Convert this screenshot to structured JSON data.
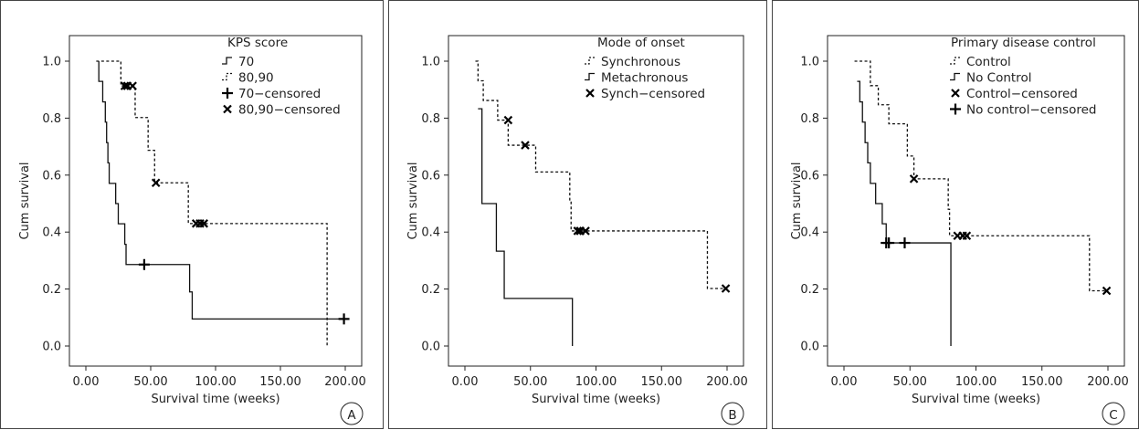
{
  "chart_data": [
    {
      "type": "line",
      "panel_letter": "A",
      "xlabel": "Survival time (weeks)",
      "ylabel": "Cum survival",
      "xlim": [
        0,
        200
      ],
      "ylim": [
        0,
        1
      ],
      "xticks": [
        "0.00",
        "50.00",
        "100.00",
        "150.00",
        "200.00"
      ],
      "yticks": [
        "0.0",
        "0.2",
        "0.4",
        "0.6",
        "0.8",
        "1.0"
      ],
      "legend_title": "KPS score",
      "legend": [
        {
          "label": "70",
          "marker": "step-solid"
        },
        {
          "label": "80,90",
          "marker": "step-dotted"
        },
        {
          "label": "70−censored",
          "marker": "plus"
        },
        {
          "label": "80,90−censored",
          "marker": "cross"
        }
      ],
      "series": [
        {
          "name": "70",
          "style": "solid",
          "steps": [
            [
              10,
              1.0
            ],
            [
              10,
              0.929
            ],
            [
              13,
              0.857
            ],
            [
              15,
              0.786
            ],
            [
              16,
              0.714
            ],
            [
              17,
              0.643
            ],
            [
              18,
              0.571
            ],
            [
              23,
              0.5
            ],
            [
              25,
              0.429
            ],
            [
              30,
              0.357
            ],
            [
              31,
              0.286
            ],
            [
              80,
              0.19
            ],
            [
              82,
              0.095
            ],
            [
              200,
              0.095
            ]
          ],
          "end_drop": null,
          "censored_marker": "plus",
          "censored": [
            [
              45,
              0.286
            ],
            [
              199,
              0.095
            ]
          ]
        },
        {
          "name": "80,90",
          "style": "dotted",
          "steps": [
            [
              8,
              1.0
            ],
            [
              27,
              0.913
            ],
            [
              38,
              0.802
            ],
            [
              48,
              0.687
            ],
            [
              53,
              0.573
            ],
            [
              79,
              0.43
            ],
            [
              186,
              0.43
            ]
          ],
          "end_drop": 0.0,
          "censored_marker": "cross",
          "censored": [
            [
              30,
              0.913
            ],
            [
              32,
              0.913
            ],
            [
              36,
              0.913
            ],
            [
              54,
              0.573
            ],
            [
              85,
              0.43
            ],
            [
              88,
              0.43
            ],
            [
              91,
              0.43
            ]
          ]
        }
      ]
    },
    {
      "type": "line",
      "panel_letter": "B",
      "xlabel": "Survival time (weeks)",
      "ylabel": "Cum survival",
      "xlim": [
        0,
        200
      ],
      "ylim": [
        0,
        1
      ],
      "xticks": [
        "0.00",
        "50.00",
        "100.00",
        "150.00",
        "200.00"
      ],
      "yticks": [
        "0.0",
        "0.2",
        "0.4",
        "0.6",
        "0.8",
        "1.0"
      ],
      "legend_title": "Mode of onset",
      "legend": [
        {
          "label": "Synchronous",
          "marker": "step-dotted"
        },
        {
          "label": "Metachronous",
          "marker": "step-solid"
        },
        {
          "label": "Synch−censored",
          "marker": "cross"
        }
      ],
      "series": [
        {
          "name": "Synchronous",
          "style": "dotted",
          "steps": [
            [
              8,
              1.0
            ],
            [
              10,
              0.931
            ],
            [
              14,
              0.862
            ],
            [
              25,
              0.793
            ],
            [
              33,
              0.705
            ],
            [
              46,
              0.705
            ],
            [
              54,
              0.611
            ],
            [
              80,
              0.509
            ],
            [
              81,
              0.404
            ],
            [
              185,
              0.202
            ],
            [
              200,
              0.202
            ]
          ],
          "end_drop": null,
          "censored_marker": "cross",
          "censored": [
            [
              33,
              0.793
            ],
            [
              46,
              0.705
            ],
            [
              86,
              0.404
            ],
            [
              88,
              0.404
            ],
            [
              92,
              0.404
            ],
            [
              199,
              0.202
            ]
          ]
        },
        {
          "name": "Metachronous",
          "style": "solid",
          "steps": [
            [
              10,
              0.833
            ],
            [
              13,
              0.5
            ],
            [
              24,
              0.333
            ],
            [
              30,
              0.167
            ],
            [
              82,
              0.167
            ]
          ],
          "end_drop": 0.0,
          "censored_marker": null,
          "censored": []
        }
      ]
    },
    {
      "type": "line",
      "panel_letter": "C",
      "xlabel": "Survival time (weeks)",
      "ylabel": "Cum survival",
      "xlim": [
        0,
        200
      ],
      "ylim": [
        0,
        1
      ],
      "xticks": [
        "0.00",
        "50.00",
        "100.00",
        "150.00",
        "200.00"
      ],
      "yticks": [
        "0.0",
        "0.2",
        "0.4",
        "0.6",
        "0.8",
        "1.0"
      ],
      "legend_title": "Primary disease control",
      "legend": [
        {
          "label": "Control",
          "marker": "step-dotted"
        },
        {
          "label": "No Control",
          "marker": "step-solid"
        },
        {
          "label": "Control−censored",
          "marker": "cross"
        },
        {
          "label": "No control−censored",
          "marker": "plus"
        }
      ],
      "series": [
        {
          "name": "Control",
          "style": "dotted",
          "steps": [
            [
              8,
              1.0
            ],
            [
              20,
              0.914
            ],
            [
              26,
              0.847
            ],
            [
              34,
              0.78
            ],
            [
              48,
              0.667
            ],
            [
              53,
              0.587
            ],
            [
              79,
              0.48
            ],
            [
              80,
              0.387
            ],
            [
              186,
              0.194
            ],
            [
              200,
              0.194
            ]
          ],
          "end_drop": null,
          "censored_marker": "cross",
          "censored": [
            [
              53,
              0.587
            ],
            [
              86,
              0.387
            ],
            [
              90,
              0.387
            ],
            [
              93,
              0.387
            ],
            [
              199,
              0.194
            ]
          ]
        },
        {
          "name": "No Control",
          "style": "solid",
          "steps": [
            [
              10,
              0.929
            ],
            [
              12,
              0.857
            ],
            [
              14,
              0.786
            ],
            [
              16,
              0.714
            ],
            [
              18,
              0.643
            ],
            [
              20,
              0.571
            ],
            [
              24,
              0.5
            ],
            [
              29,
              0.429
            ],
            [
              32,
              0.362
            ],
            [
              81,
              0.362
            ]
          ],
          "end_drop": 0.0,
          "censored_marker": "plus",
          "censored": [
            [
              32,
              0.362
            ],
            [
              34,
              0.362
            ],
            [
              46,
              0.362
            ]
          ]
        }
      ]
    }
  ]
}
